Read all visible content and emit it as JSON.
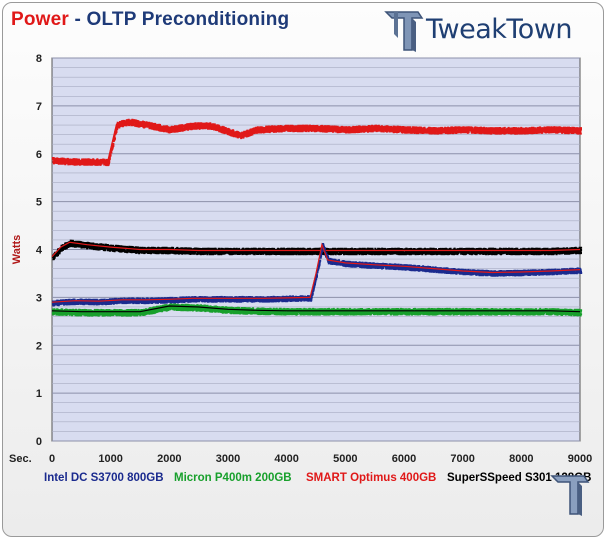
{
  "header": {
    "title_part1": "Power",
    "title_part2": " - OLTP Preconditioning",
    "logo_text": "TweakTown"
  },
  "colors": {
    "intel": "#1a2a8e",
    "micron": "#18a02c",
    "smart": "#e01818",
    "superspeed": "#000000",
    "plot_bg": "#d8dcf0",
    "grid": "#a8acc2"
  },
  "chart_data": {
    "type": "scatter",
    "title": "Power - OLTP Preconditioning",
    "xlabel": "Sec.",
    "ylabel": "Watts",
    "xlim": [
      0,
      9000
    ],
    "ylim": [
      0,
      8
    ],
    "x_ticks": [
      0,
      1000,
      2000,
      3000,
      4000,
      5000,
      6000,
      7000,
      8000,
      9000
    ],
    "y_ticks": [
      0,
      1,
      2,
      3,
      4,
      5,
      6,
      7,
      8
    ],
    "minor_y_step": 0.2,
    "legend_position": "bottom",
    "series": [
      {
        "name": "Intel DC S3700 800GB",
        "color": "#1a2a8e",
        "x": [
          0,
          400,
          800,
          1200,
          1600,
          2000,
          2400,
          2800,
          3200,
          3600,
          4000,
          4400,
          4500,
          4600,
          4700,
          5000,
          5500,
          6000,
          6500,
          7000,
          7500,
          8000,
          8500,
          9000
        ],
        "y": [
          2.9,
          2.93,
          2.92,
          2.95,
          2.95,
          2.96,
          2.98,
          2.98,
          2.98,
          2.98,
          2.99,
          3.0,
          3.5,
          4.1,
          3.78,
          3.72,
          3.68,
          3.65,
          3.6,
          3.55,
          3.52,
          3.53,
          3.55,
          3.58
        ]
      },
      {
        "name": "Micron P400m 200GB",
        "color": "#18a02c",
        "x": [
          0,
          500,
          1000,
          1500,
          2000,
          2500,
          3000,
          3500,
          4000,
          4500,
          5000,
          5500,
          6000,
          6500,
          7000,
          7500,
          8000,
          8500,
          9000
        ],
        "y": [
          2.72,
          2.7,
          2.7,
          2.7,
          2.82,
          2.8,
          2.75,
          2.73,
          2.72,
          2.72,
          2.72,
          2.72,
          2.72,
          2.72,
          2.72,
          2.72,
          2.72,
          2.72,
          2.7
        ]
      },
      {
        "name": "SMART  Optimus 400GB",
        "color": "#e01818",
        "x": [
          0,
          300,
          600,
          950,
          1100,
          1300,
          1600,
          2000,
          2400,
          2700,
          3000,
          3200,
          3500,
          4000,
          4500,
          5000,
          5500,
          6000,
          6500,
          7000,
          7500,
          8000,
          8500,
          9000
        ],
        "y": [
          5.88,
          5.85,
          5.85,
          5.84,
          6.62,
          6.68,
          6.62,
          6.52,
          6.6,
          6.6,
          6.48,
          6.4,
          6.52,
          6.55,
          6.55,
          6.52,
          6.55,
          6.52,
          6.5,
          6.52,
          6.5,
          6.5,
          6.52,
          6.5
        ]
      },
      {
        "name": "SuperSSpeed S301 128GB",
        "color": "#000000",
        "x": [
          0,
          150,
          300,
          600,
          1000,
          1500,
          2000,
          2500,
          3000,
          3500,
          4000,
          4500,
          5000,
          5500,
          6000,
          6500,
          7000,
          7500,
          8000,
          8500,
          9000
        ],
        "y": [
          3.85,
          4.05,
          4.15,
          4.1,
          4.05,
          4.0,
          4.0,
          3.98,
          3.98,
          3.98,
          3.98,
          3.98,
          3.98,
          3.98,
          3.98,
          3.98,
          3.98,
          3.98,
          3.98,
          3.98,
          4.0
        ]
      }
    ]
  }
}
